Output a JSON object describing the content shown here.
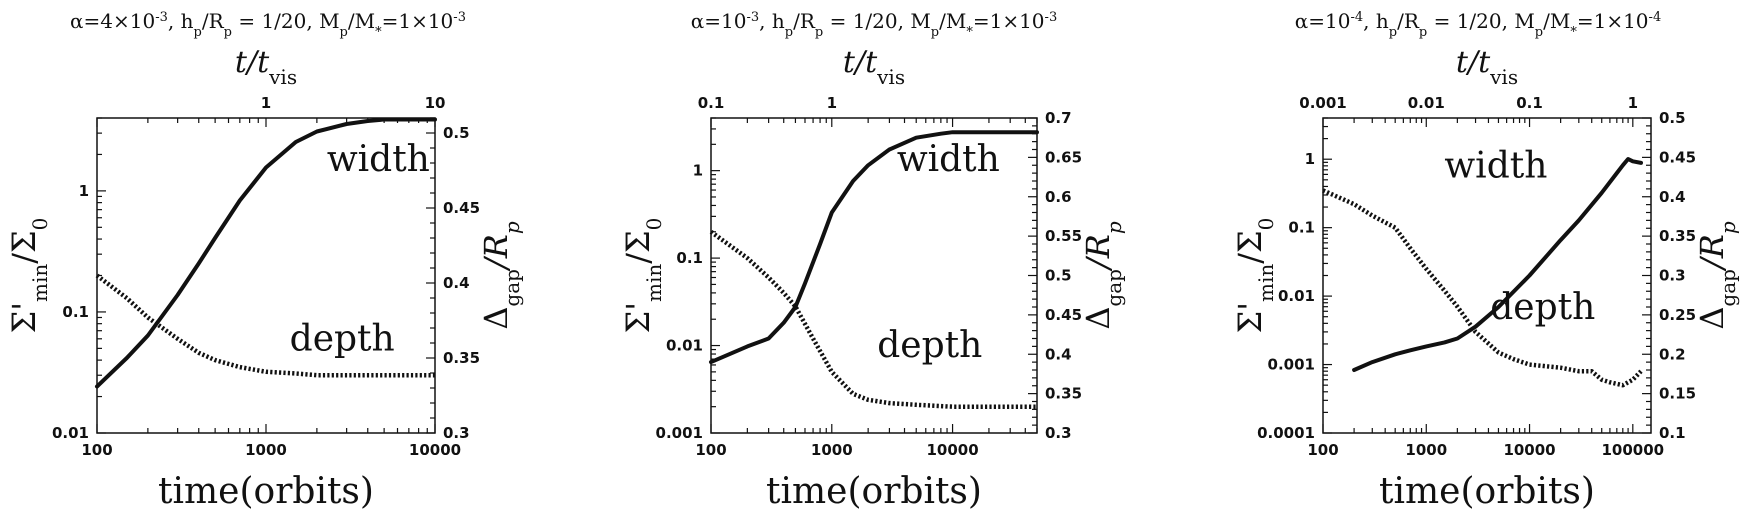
{
  "chart_data": [
    {
      "type": "line",
      "title": "α=4×10⁻³, hp/Rp = 1/20, Mp/M*=1×10⁻³",
      "title_parts": {
        "pre": "α=4×10",
        "sup": "-3",
        "mid": ", h",
        "s1": "p",
        "m1": "/R",
        "s2": "p",
        "m2": " = 1/20, M",
        "s3": "p",
        "m3": "/M",
        "s4": "*",
        "end": "=1×10",
        "sup2": "-3"
      },
      "xlabel": "time(orbits)",
      "ylabel": "Σ'min/Σ0",
      "y2label": "Δgap/Rp",
      "top_xlabel": "t/tvis",
      "x_scale": "log",
      "xlim": [
        100,
        10000
      ],
      "y_scale": "log",
      "ylim": [
        0.01,
        4
      ],
      "y2_scale": "linear",
      "y2lim": [
        0.3,
        0.51
      ],
      "x_ticks": [
        100,
        1000,
        10000
      ],
      "x_tick_labels": [
        "100",
        "1000",
        "10000"
      ],
      "y_ticks": [
        0.01,
        0.1,
        1
      ],
      "y_tick_labels": [
        "0.01",
        "0.1",
        "1"
      ],
      "y2_ticks": [
        0.3,
        0.35,
        0.4,
        0.45,
        0.5
      ],
      "y2_tick_labels": [
        "0.3",
        "0.35",
        "0.4",
        "0.45",
        "0.5"
      ],
      "top_ticks": [
        {
          "x": 1000,
          "label": "1"
        },
        {
          "x": 10000,
          "label": "10"
        }
      ],
      "annotations": [
        "width",
        "depth"
      ],
      "series": [
        {
          "name": "width",
          "axis": "y2",
          "style": "solid",
          "x": [
            100,
            150,
            200,
            300,
            400,
            500,
            700,
            1000,
            1500,
            2000,
            3000,
            4000,
            5000,
            7000,
            10000
          ],
          "y": [
            0.331,
            0.35,
            0.365,
            0.392,
            0.413,
            0.43,
            0.455,
            0.477,
            0.494,
            0.501,
            0.506,
            0.508,
            0.509,
            0.509,
            0.509
          ]
        },
        {
          "name": "depth",
          "axis": "y",
          "style": "dotted",
          "x": [
            100,
            150,
            200,
            300,
            400,
            500,
            700,
            1000,
            1500,
            2000,
            3000,
            5000,
            10000
          ],
          "y": [
            0.2,
            0.13,
            0.09,
            0.06,
            0.046,
            0.04,
            0.035,
            0.032,
            0.031,
            0.03,
            0.03,
            0.03,
            0.03
          ]
        }
      ]
    },
    {
      "type": "line",
      "title": "α=10⁻³, hp/Rp = 1/20, Mp/M*=1×10⁻³",
      "title_parts": {
        "pre": "α=10",
        "sup": "-3",
        "mid": ", h",
        "s1": "p",
        "m1": "/R",
        "s2": "p",
        "m2": " = 1/20, M",
        "s3": "p",
        "m3": "/M",
        "s4": "*",
        "end": "=1×10",
        "sup2": "-3"
      },
      "xlabel": "time(orbits)",
      "ylabel": "Σ'min/Σ0",
      "y2label": "Δgap/Rp",
      "top_xlabel": "t/tvis",
      "x_scale": "log",
      "xlim": [
        100,
        50000
      ],
      "y_scale": "log",
      "ylim": [
        0.001,
        4
      ],
      "y2_scale": "linear",
      "y2lim": [
        0.3,
        0.7
      ],
      "x_ticks": [
        100,
        1000,
        10000
      ],
      "x_tick_labels": [
        "100",
        "1000",
        "10000"
      ],
      "y_ticks": [
        0.001,
        0.01,
        0.1,
        1
      ],
      "y_tick_labels": [
        "0.001",
        "0.01",
        "0.1",
        "1"
      ],
      "y2_ticks": [
        0.3,
        0.35,
        0.4,
        0.45,
        0.5,
        0.55,
        0.6,
        0.65,
        0.7
      ],
      "y2_tick_labels": [
        "0.3",
        "0.35",
        "0.4",
        "0.45",
        "0.5",
        "0.55",
        "0.6",
        "0.65",
        "0.7"
      ],
      "top_ticks": [
        {
          "x": 100,
          "label": "0.1"
        },
        {
          "x": 1000,
          "label": "1"
        }
      ],
      "annotations": [
        "width",
        "depth"
      ],
      "series": [
        {
          "name": "width",
          "axis": "y2",
          "style": "solid",
          "x": [
            100,
            200,
            300,
            400,
            500,
            600,
            800,
            1000,
            1500,
            2000,
            3000,
            5000,
            8000,
            10000,
            20000,
            50000
          ],
          "y": [
            0.39,
            0.41,
            0.42,
            0.44,
            0.46,
            0.49,
            0.54,
            0.58,
            0.62,
            0.64,
            0.66,
            0.675,
            0.68,
            0.682,
            0.682,
            0.682
          ]
        },
        {
          "name": "depth",
          "axis": "y",
          "style": "dotted",
          "x": [
            100,
            200,
            300,
            400,
            500,
            700,
            1000,
            1500,
            2000,
            3000,
            5000,
            10000,
            20000,
            50000
          ],
          "y": [
            0.2,
            0.1,
            0.06,
            0.04,
            0.028,
            0.012,
            0.005,
            0.0028,
            0.0024,
            0.0022,
            0.0021,
            0.002,
            0.002,
            0.002
          ]
        }
      ]
    },
    {
      "type": "line",
      "title": "α=10⁻⁴, hp/Rp = 1/20, Mp/M*=1×10⁻⁴",
      "title_parts": {
        "pre": "α=10",
        "sup": "-4",
        "mid": ", h",
        "s1": "p",
        "m1": "/R",
        "s2": "p",
        "m2": " = 1/20, M",
        "s3": "p",
        "m3": "/M",
        "s4": "*",
        "end": "=1×10",
        "sup2": "-4"
      },
      "xlabel": "time(orbits)",
      "ylabel": "Σ'min/Σ0",
      "y2label": "Δgap/Rp",
      "top_xlabel": "t/tvis",
      "x_scale": "log",
      "xlim": [
        100,
        150000
      ],
      "y_scale": "log",
      "ylim": [
        0.0001,
        4
      ],
      "y2_scale": "linear",
      "y2lim": [
        0.1,
        0.5
      ],
      "x_ticks": [
        100,
        1000,
        10000,
        100000
      ],
      "x_tick_labels": [
        "100",
        "1000",
        "10000",
        "100000"
      ],
      "y_ticks": [
        0.0001,
        0.001,
        0.01,
        0.1,
        1
      ],
      "y_tick_labels": [
        "0.0001",
        "0.001",
        "0.01",
        "0.1",
        "1"
      ],
      "y2_ticks": [
        0.1,
        0.15,
        0.2,
        0.25,
        0.3,
        0.35,
        0.4,
        0.45,
        0.5
      ],
      "y2_tick_labels": [
        "0.1",
        "0.15",
        "0.2",
        "0.25",
        "0.3",
        "0.35",
        "0.4",
        "0.45",
        "0.5"
      ],
      "top_ticks": [
        {
          "x": 100,
          "label": "0.001"
        },
        {
          "x": 1000,
          "label": "0.01"
        },
        {
          "x": 10000,
          "label": "0.1"
        },
        {
          "x": 100000,
          "label": "1"
        }
      ],
      "annotations": [
        "width",
        "depth"
      ],
      "series": [
        {
          "name": "width",
          "axis": "y2",
          "style": "solid",
          "x": [
            200,
            300,
            500,
            700,
            1000,
            1500,
            2000,
            3000,
            5000,
            10000,
            20000,
            30000,
            50000,
            70000,
            80000,
            90000,
            100000,
            120000
          ],
          "y": [
            0.18,
            0.19,
            0.2,
            0.205,
            0.21,
            0.215,
            0.22,
            0.235,
            0.26,
            0.3,
            0.345,
            0.37,
            0.405,
            0.43,
            0.44,
            0.448,
            0.445,
            0.443
          ]
        },
        {
          "name": "depth",
          "axis": "y",
          "style": "dotted",
          "x": [
            100,
            200,
            300,
            500,
            700,
            1000,
            1500,
            2000,
            3000,
            5000,
            7000,
            10000,
            20000,
            30000,
            40000,
            50000,
            60000,
            80000,
            100000,
            120000
          ],
          "y": [
            0.35,
            0.22,
            0.15,
            0.1,
            0.05,
            0.025,
            0.012,
            0.007,
            0.003,
            0.0015,
            0.0012,
            0.001,
            0.0009,
            0.0008,
            0.0008,
            0.0006,
            0.00055,
            0.0005,
            0.0006,
            0.0008
          ]
        }
      ]
    }
  ]
}
